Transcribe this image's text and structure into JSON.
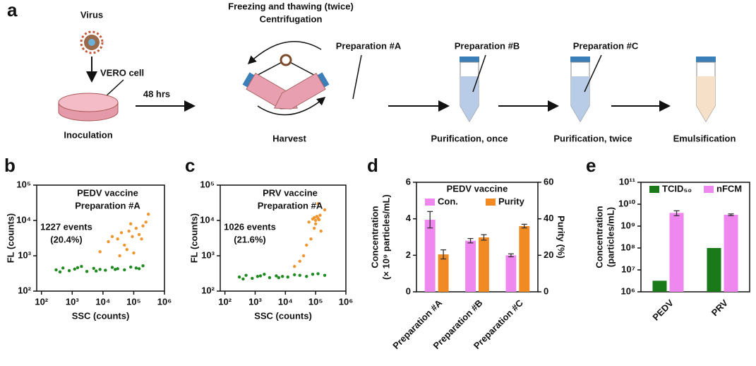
{
  "diagram": {
    "panel_label": "a",
    "virus": "Virus",
    "vero_cell": "VERO cell",
    "inoculation": "Inoculation",
    "hours": "48 hrs",
    "freezing": "Freezing and thawing (twice)",
    "centrifugation": "Centrifugation",
    "prep_a": "Preparation #A",
    "harvest": "Harvest",
    "prep_b": "Preparation #B",
    "prep_c": "Preparation #C",
    "purification_once": "Purification, once",
    "purification_twice": "Purification, twice",
    "emulsification": "Emulsification"
  },
  "chart_data": [
    {
      "type": "scatter",
      "panel_label": "b",
      "x_label": "SSC (counts)",
      "y_label": "FL (counts)",
      "xscale": "log",
      "yscale": "log",
      "xlim": [
        70,
        1000000
      ],
      "ylim": [
        100,
        100000
      ],
      "xticks": [
        {
          "value": 100,
          "label": "10²"
        },
        {
          "value": 1000,
          "label": "10³"
        },
        {
          "value": 10000,
          "label": "10⁴"
        },
        {
          "value": 100000,
          "label": "10⁵"
        },
        {
          "value": 1000000,
          "label": "10⁶"
        }
      ],
      "yticks": [
        {
          "value": 100,
          "label": "10²"
        },
        {
          "value": 1000,
          "label": "10³"
        },
        {
          "value": 10000,
          "label": "10⁴"
        },
        {
          "value": 100000,
          "label": "10⁵"
        }
      ],
      "annotations": [
        {
          "text": "PEDV vaccine",
          "color": "#111111"
        },
        {
          "text": "Preparation #A",
          "color": "#111111"
        },
        {
          "text": "1227 events",
          "color": "#2b2ba8"
        },
        {
          "text": "(20.4%)",
          "color": "#2b2ba8"
        }
      ],
      "series": [
        {
          "color": "#1f8a1f",
          "x": [
            300,
            500,
            800,
            1200,
            2000,
            3000,
            5000,
            8000,
            12000,
            20000,
            30000,
            50000,
            80000,
            120000,
            200000,
            400,
            1500,
            6000,
            25000,
            150000
          ],
          "values": [
            400,
            450,
            380,
            420,
            500,
            360,
            440,
            410,
            390,
            470,
            430,
            400,
            480,
            450,
            520,
            350,
            460,
            370,
            410,
            430
          ]
        },
        {
          "color": "#f0962e",
          "x": [
            15000,
            20000,
            30000,
            40000,
            50000,
            70000,
            90000,
            120000,
            150000,
            200000,
            250000,
            60000,
            100000,
            35000,
            180000,
            80000,
            8000,
            300000
          ],
          "values": [
            2500,
            3500,
            3000,
            4500,
            2000,
            5000,
            3500,
            6000,
            4000,
            7000,
            9000,
            1500,
            1200,
            1000,
            3000,
            8000,
            1300,
            15000
          ]
        }
      ]
    },
    {
      "type": "scatter",
      "panel_label": "c",
      "x_label": "SSC (counts)",
      "y_label": "FL (counts)",
      "xscale": "log",
      "yscale": "log",
      "xlim": [
        70,
        1000000
      ],
      "ylim": [
        100,
        100000
      ],
      "xticks": [
        {
          "value": 100,
          "label": "10²"
        },
        {
          "value": 1000,
          "label": "10³"
        },
        {
          "value": 10000,
          "label": "10⁴"
        },
        {
          "value": 100000,
          "label": "10⁵"
        },
        {
          "value": 1000000,
          "label": "10⁶"
        }
      ],
      "yticks": [
        {
          "value": 100,
          "label": "10²"
        },
        {
          "value": 1000,
          "label": "10³"
        },
        {
          "value": 10000,
          "label": "10⁴"
        },
        {
          "value": 100000,
          "label": "10⁵"
        }
      ],
      "annotations": [
        {
          "text": "PRV vaccine",
          "color": "#111111"
        },
        {
          "text": "Preparation #A",
          "color": "#111111"
        },
        {
          "text": "1026 events",
          "color": "#2b2ba8"
        },
        {
          "text": "(21.6%)",
          "color": "#2b2ba8"
        }
      ],
      "series": [
        {
          "color": "#1f8a1f",
          "x": [
            300,
            500,
            800,
            1200,
            2000,
            3000,
            5000,
            8000,
            12000,
            20000,
            30000,
            50000,
            80000,
            120000,
            200000,
            400,
            1500,
            6000
          ],
          "values": [
            250,
            280,
            230,
            260,
            300,
            240,
            270,
            260,
            250,
            290,
            280,
            260,
            300,
            310,
            280,
            220,
            270,
            240
          ]
        },
        {
          "color": "#f0962e",
          "x": [
            60000,
            80000,
            90000,
            100000,
            110000,
            120000,
            130000,
            140000,
            100000,
            90000,
            70000,
            50000,
            40000,
            30000,
            150000,
            200000,
            20000,
            120000
          ],
          "values": [
            9000,
            11000,
            12000,
            10000,
            13000,
            11500,
            10500,
            14000,
            8000,
            6000,
            3000,
            2000,
            1000,
            700,
            5000,
            20000,
            500,
            30000
          ]
        }
      ]
    },
    {
      "type": "bar",
      "panel_label": "d",
      "title": "PEDV vaccine",
      "y_label": [
        "Concentration",
        "(× 10⁹ particles/mL)"
      ],
      "y2_label": "Purity (%)",
      "categories": [
        "Preparation #A",
        "Preparation #B",
        "Preparation #C"
      ],
      "ylim": [
        0,
        6
      ],
      "yticks": [
        0,
        2,
        4,
        6
      ],
      "y2lim": [
        0,
        60
      ],
      "y2ticks": [
        0,
        20,
        40,
        60
      ],
      "legend": "top",
      "series": [
        {
          "name": "Con.",
          "color": "#ee88ee",
          "values": [
            3.95,
            2.8,
            2.0
          ],
          "errors": [
            0.45,
            0.12,
            0.08
          ]
        },
        {
          "name": "Purity",
          "color": "#f28a24",
          "axis": "y2",
          "values": [
            20.5,
            29.8,
            36
          ],
          "errors": [
            2.5,
            1.5,
            1
          ]
        }
      ]
    },
    {
      "type": "bar",
      "panel_label": "e",
      "y_label": [
        "Concentration",
        "(particles/mL)"
      ],
      "yscale": "log",
      "categories": [
        "PEDV",
        "PRV"
      ],
      "ylim": [
        1000000,
        100000000000
      ],
      "yticks": [
        {
          "value": 1000000,
          "label": "10⁶"
        },
        {
          "value": 10000000,
          "label": "10⁷"
        },
        {
          "value": 100000000,
          "label": "10⁸"
        },
        {
          "value": 1000000000,
          "label": "10⁹"
        },
        {
          "value": 10000000000,
          "label": "10¹⁰"
        },
        {
          "value": 100000000000,
          "label": "10¹¹"
        }
      ],
      "legend": "top",
      "series": [
        {
          "name": "TCID₅₀",
          "color": "#1a7a1a",
          "values": [
            3200000,
            100000000
          ]
        },
        {
          "name": "nFCM",
          "color": "#ee88ee",
          "values": [
            4000000000,
            3300000000
          ],
          "errors": [
            1000000000,
            300000000
          ]
        }
      ]
    }
  ]
}
